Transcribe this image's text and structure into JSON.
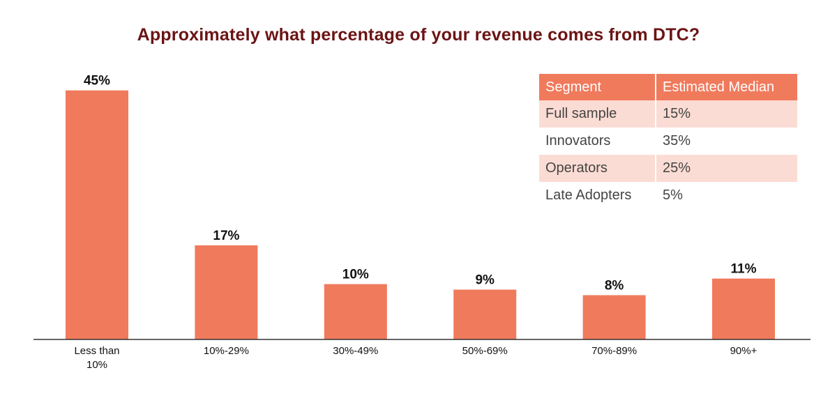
{
  "colors": {
    "bar": "#f07a5c",
    "title": "#6b1414",
    "axis": "#333333",
    "table_header": "#f07a5c",
    "table_shade": "#fbdcd4"
  },
  "chart_data": {
    "type": "bar",
    "title": "Approximately what percentage of your revenue comes from DTC?",
    "categories": [
      "Less than 10%",
      "10%-29%",
      "30%-49%",
      "50%-69%",
      "70%-89%",
      "90%+"
    ],
    "values": [
      45,
      17,
      10,
      9,
      8,
      11
    ],
    "data_labels": [
      "45%",
      "17%",
      "10%",
      "9%",
      "8%",
      "11%"
    ],
    "xlabel": "",
    "ylabel": "",
    "ylim": [
      0,
      50
    ],
    "grid": false,
    "legend": "none"
  },
  "table": {
    "headers": [
      "Segment",
      "Estimated Median"
    ],
    "rows": [
      [
        "Full sample",
        "15%"
      ],
      [
        "Innovators",
        "35%"
      ],
      [
        "Operators",
        "25%"
      ],
      [
        "Late Adopters",
        "5%"
      ]
    ]
  }
}
